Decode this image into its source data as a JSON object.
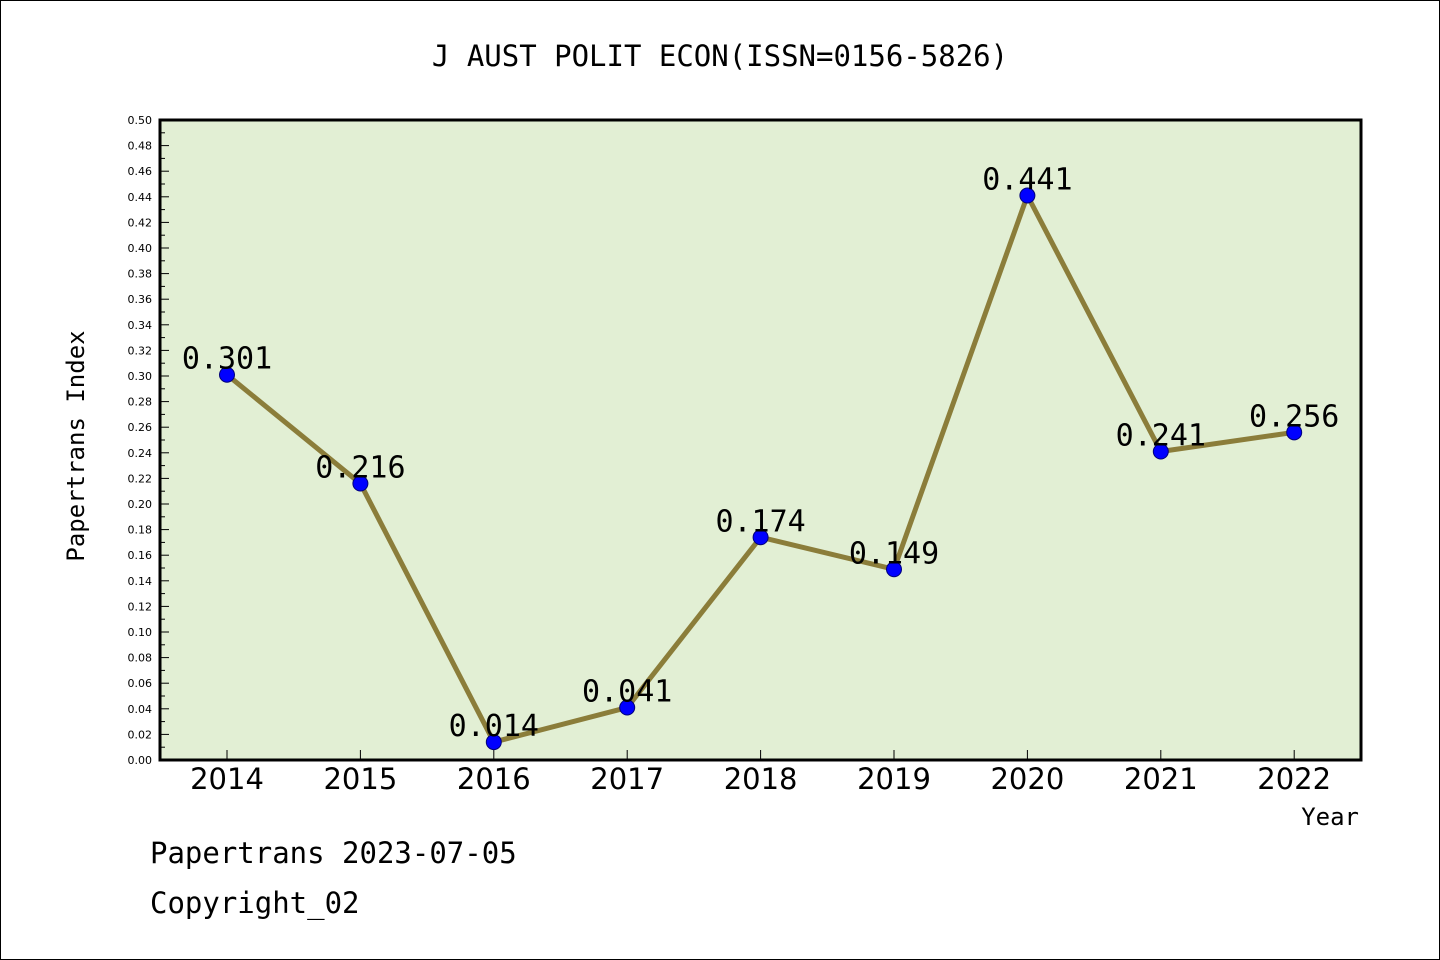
{
  "colors": {
    "plot_background": "#e2efd4",
    "line": "#8b7d3a",
    "marker_fill": "#0000ff",
    "marker_stroke": "#00007a",
    "frame": "#000000"
  },
  "footer": {
    "date": "Papertrans 2023-07-05",
    "copyright": "Copyright_02"
  },
  "chart_data": {
    "type": "line",
    "title": "J AUST POLIT ECON(ISSN=0156-5826)",
    "xlabel": "Year",
    "ylabel": "Papertrans Index",
    "categories": [
      "2014",
      "2015",
      "2016",
      "2017",
      "2018",
      "2019",
      "2020",
      "2021",
      "2022"
    ],
    "series": [
      {
        "values": [
          0.301,
          0.216,
          0.014,
          0.041,
          0.174,
          0.149,
          0.441,
          0.241,
          0.256
        ],
        "data_labels": [
          "0.301",
          "0.216",
          "0.014",
          "0.041",
          "0.174",
          "0.149",
          "0.441",
          "0.241",
          "0.256"
        ]
      }
    ],
    "ylim": [
      0,
      0.5
    ],
    "y_ticks": [
      "0.00",
      "0.02",
      "0.04",
      "0.06",
      "0.08",
      "0.10",
      "0.12",
      "0.14",
      "0.16",
      "0.18",
      "0.20",
      "0.22",
      "0.24",
      "0.26",
      "0.28",
      "0.30",
      "0.32",
      "0.34",
      "0.36",
      "0.38",
      "0.40",
      "0.42",
      "0.44",
      "0.46",
      "0.48",
      "0.50"
    ],
    "grid": false,
    "legend": "none",
    "marker": "circle"
  }
}
